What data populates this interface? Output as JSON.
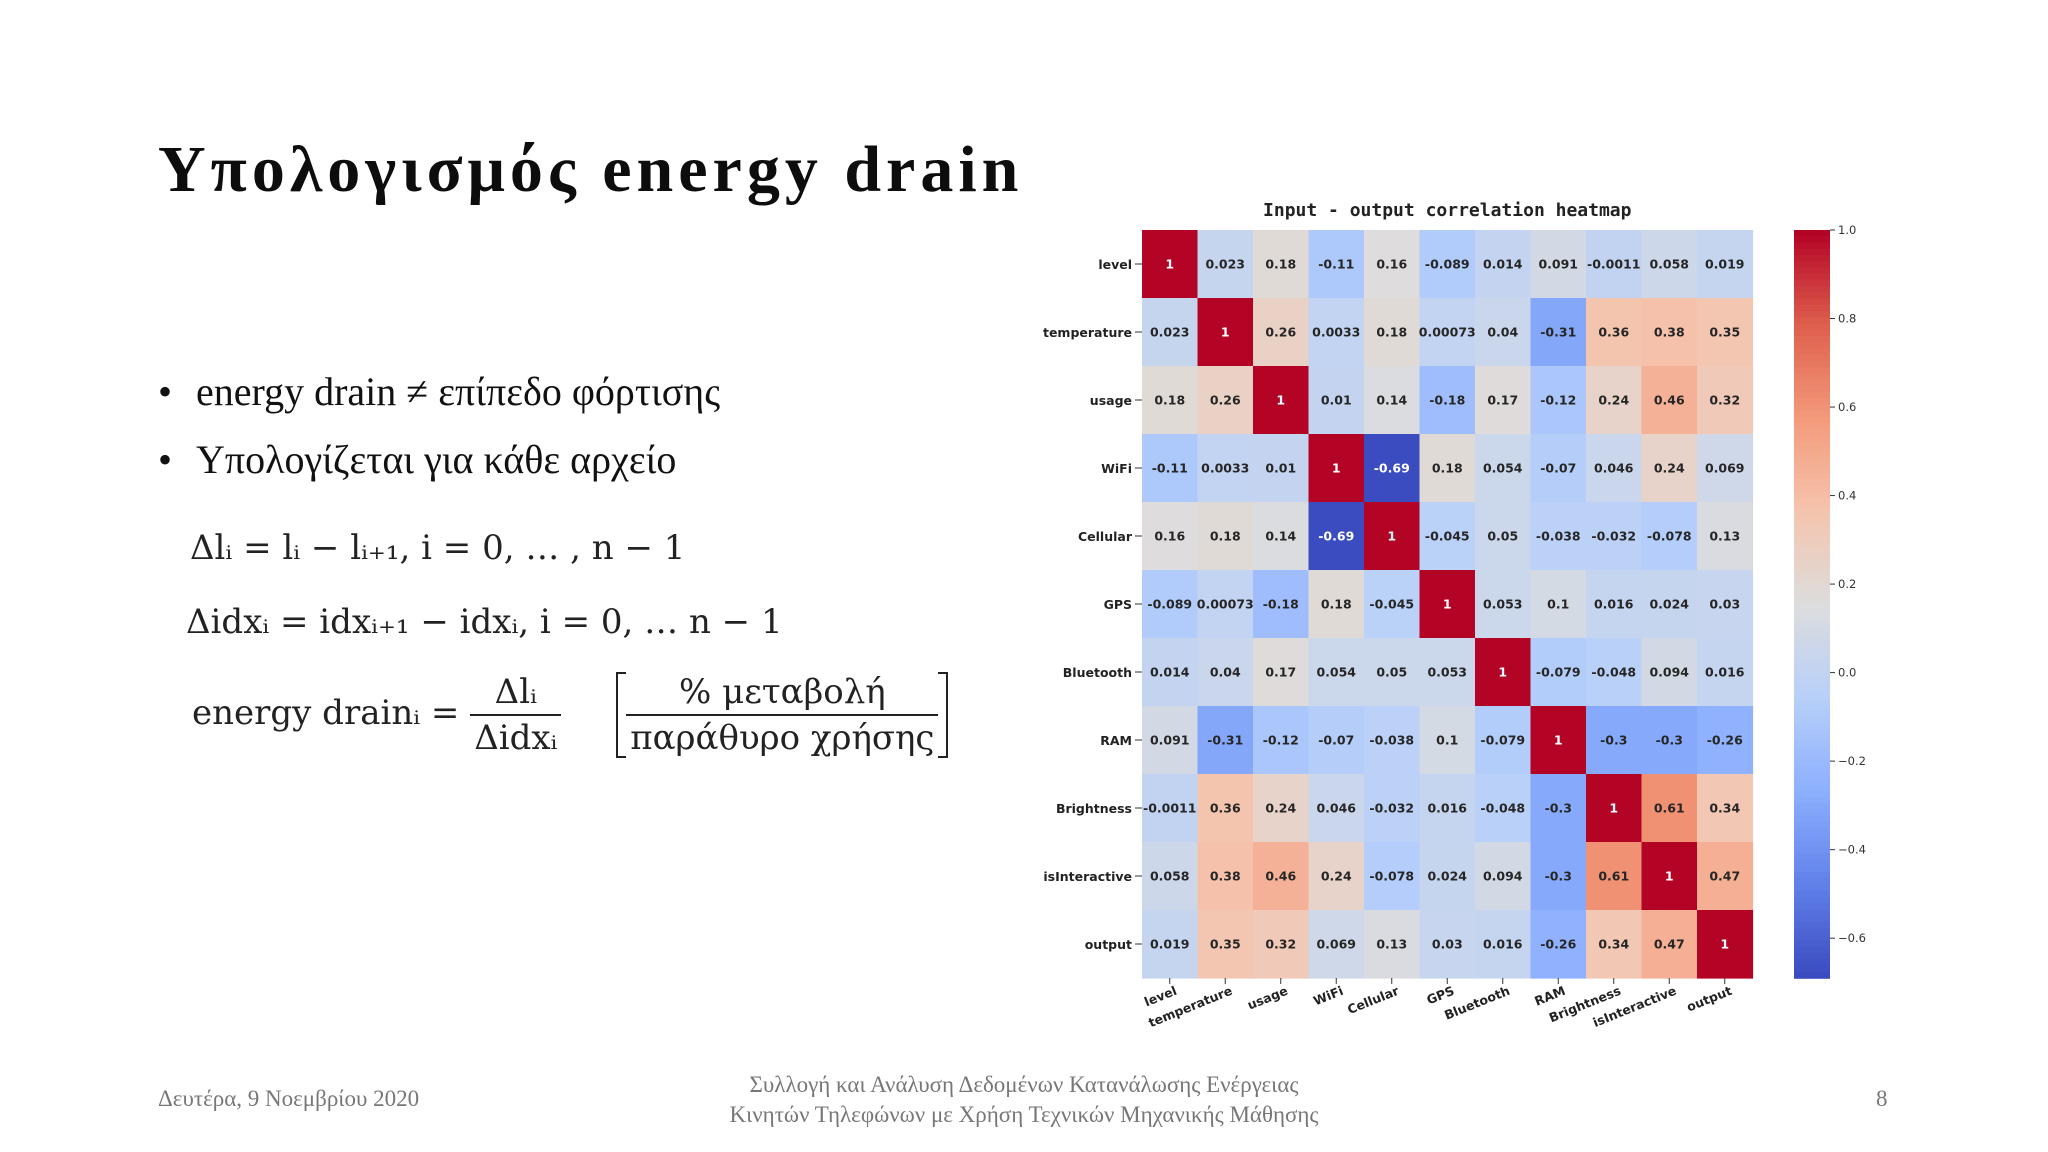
{
  "slide": {
    "title": "Υπολογισμός energy drain",
    "bullets": [
      "energy drain ≠ επίπεδο φόρτισης",
      "Υπολογίζεται για κάθε αρχείο"
    ],
    "formulas": {
      "f1": "Δlᵢ = lᵢ − lᵢ₊₁,  i = 0, … , n − 1",
      "f2": "Δidxᵢ = idxᵢ₊₁ − idxᵢ, i = 0, … n − 1",
      "f3_lhs": "energy drainᵢ =",
      "f3_num": "Δlᵢ",
      "f3_den": "Δidxᵢ",
      "f3_unit_num": "% μεταβολή",
      "f3_unit_den": "παράθυρο χρήσης"
    },
    "footer": {
      "date": "Δευτέρα, 9 Νοεμβρίου 2020",
      "center_line1": "Συλλογή και Ανάλυση Δεδομένων Κατανάλωσης Ενέργειας",
      "center_line2": "Κινητών Τηλεφώνων με Χρήση Τεχνικών Μηχανικής Μάθησης",
      "page": "8"
    }
  },
  "chart_data": {
    "type": "heatmap",
    "title": "Input - output correlation heatmap",
    "colormap": "coolwarm",
    "vmin": -0.69,
    "vmax": 1.0,
    "labels": [
      "level",
      "temperature",
      "usage",
      "WiFi",
      "Cellular",
      "GPS",
      "Bluetooth",
      "RAM",
      "Brightness",
      "isInteractive",
      "output"
    ],
    "annotations": [
      [
        "1",
        "0.023",
        "0.18",
        "-0.11",
        "0.16",
        "-0.089",
        "0.014",
        "0.091",
        "-0.0011",
        "0.058",
        "0.019"
      ],
      [
        "0.023",
        "1",
        "0.26",
        "0.0033",
        "0.18",
        "0.00073",
        "0.04",
        "-0.31",
        "0.36",
        "0.38",
        "0.35"
      ],
      [
        "0.18",
        "0.26",
        "1",
        "0.01",
        "0.14",
        "-0.18",
        "0.17",
        "-0.12",
        "0.24",
        "0.46",
        "0.32"
      ],
      [
        "-0.11",
        "0.0033",
        "0.01",
        "1",
        "-0.69",
        "0.18",
        "0.054",
        "-0.07",
        "0.046",
        "0.24",
        "0.069"
      ],
      [
        "0.16",
        "0.18",
        "0.14",
        "-0.69",
        "1",
        "-0.045",
        "0.05",
        "-0.038",
        "-0.032",
        "-0.078",
        "0.13"
      ],
      [
        "-0.089",
        "0.00073",
        "-0.18",
        "0.18",
        "-0.045",
        "1",
        "0.053",
        "0.1",
        "0.016",
        "0.024",
        "0.03"
      ],
      [
        "0.014",
        "0.04",
        "0.17",
        "0.054",
        "0.05",
        "0.053",
        "1",
        "-0.079",
        "-0.048",
        "0.094",
        "0.016"
      ],
      [
        "0.091",
        "-0.31",
        "-0.12",
        "-0.07",
        "-0.038",
        "0.1",
        "-0.079",
        "1",
        "-0.3",
        "-0.3",
        "-0.26"
      ],
      [
        "-0.0011",
        "0.36",
        "0.24",
        "0.046",
        "-0.032",
        "0.016",
        "-0.048",
        "-0.3",
        "1",
        "0.61",
        "0.34"
      ],
      [
        "0.058",
        "0.38",
        "0.46",
        "0.24",
        "-0.078",
        "0.024",
        "0.094",
        "-0.3",
        "0.61",
        "1",
        "0.47"
      ],
      [
        "0.019",
        "0.35",
        "0.32",
        "0.069",
        "0.13",
        "0.03",
        "0.016",
        "-0.26",
        "0.34",
        "0.47",
        "1"
      ]
    ],
    "colorbar": {
      "ticks": [
        1.0,
        0.8,
        0.6,
        0.4,
        0.2,
        0.0,
        -0.2,
        -0.4,
        -0.6
      ],
      "tick_labels": [
        "1.0",
        "0.8",
        "0.6",
        "0.4",
        "0.2",
        "0.0",
        "−0.2",
        "−0.4",
        "−0.6"
      ]
    }
  }
}
